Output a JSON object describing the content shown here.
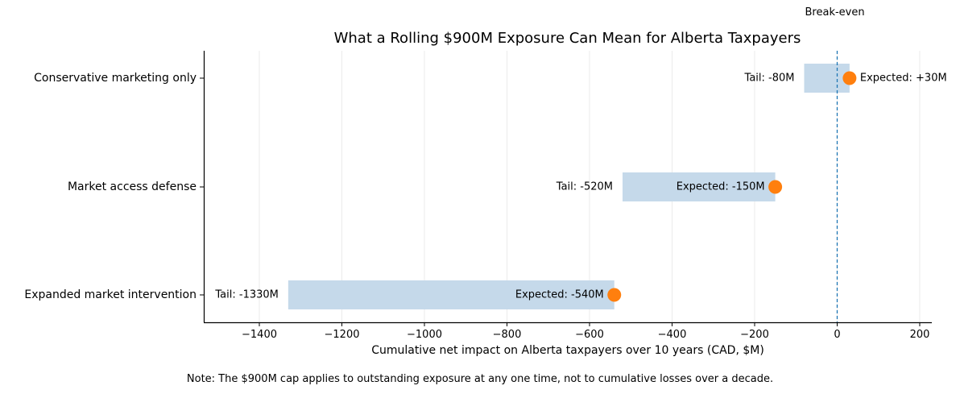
{
  "chart_data": {
    "type": "bar",
    "subtype": "horizontal range bar with point markers",
    "title": "What a Rolling $900M Exposure Can Mean for Alberta Taxpayers",
    "xlabel": "Cumulative net impact on Alberta taxpayers over 10 years (CAD, $M)",
    "ylabel": "",
    "xlim": [
      -1535,
      230
    ],
    "xticks": [
      -1400,
      -1200,
      -1000,
      -800,
      -600,
      -400,
      -200,
      0,
      200
    ],
    "xtick_labels": [
      "−1400",
      "−1200",
      "−1000",
      "−800",
      "−600",
      "−400",
      "−200",
      "0",
      "200"
    ],
    "grid": "vertical, light",
    "categories": [
      "Conservative marketing only",
      "Market access defense",
      "Expanded market intervention"
    ],
    "series": [
      {
        "name": "Tail",
        "values": [
          -80,
          -520,
          -1330
        ]
      },
      {
        "name": "Expected",
        "values": [
          30,
          -150,
          -540
        ]
      }
    ],
    "ranges": [
      {
        "category": "Conservative marketing only",
        "from": -80,
        "to": 30,
        "tail_label": "Tail: -80M",
        "expected_label": "Expected: +30M"
      },
      {
        "category": "Market access defense",
        "from": -520,
        "to": -150,
        "tail_label": "Tail: -520M",
        "expected_label": "Expected: -150M"
      },
      {
        "category": "Expanded market intervention",
        "from": -1330,
        "to": -540,
        "tail_label": "Tail: -1330M",
        "expected_label": "Expected: -540M"
      }
    ],
    "reference_line": {
      "x": 0,
      "label": "Break-even",
      "style": "dashed"
    },
    "annotations": [
      "Break-even",
      "Note: The $900M cap applies to outstanding exposure at any one time, not to cumulative losses over a decade."
    ],
    "colors": {
      "range_bar": "#c5d9ea",
      "expected_marker": "#ff7f0e",
      "reference_line": "#1f77b4",
      "grid": "#ebebeb"
    },
    "legend": "none"
  },
  "note": "Note: The $900M cap applies to outstanding exposure at any one time, not to cumulative losses over a decade."
}
